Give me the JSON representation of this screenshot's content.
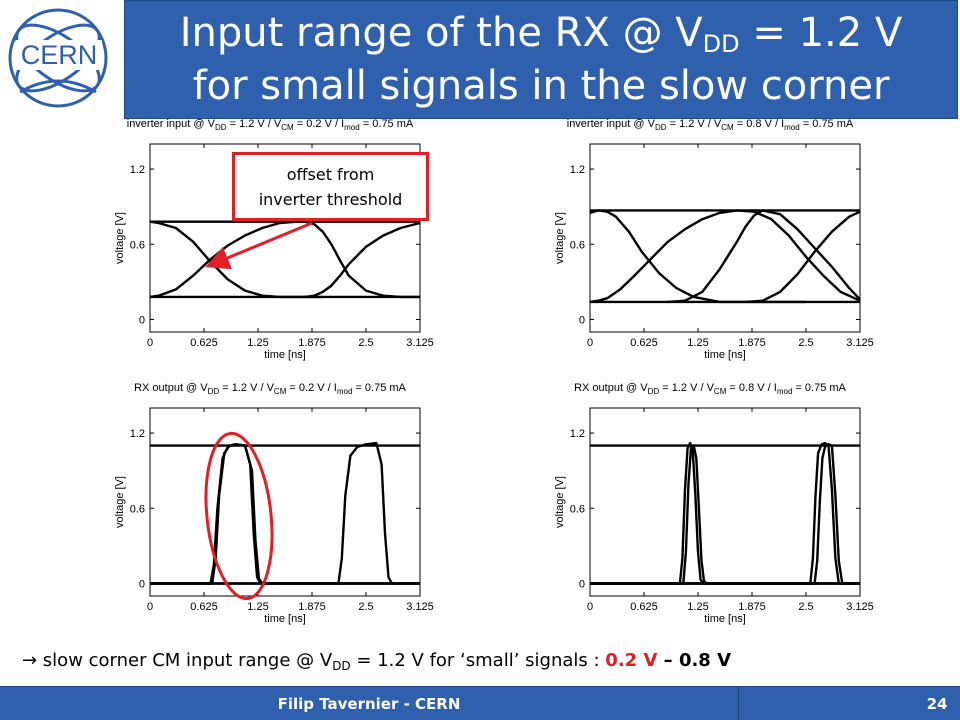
{
  "logo": {
    "text": "CERN"
  },
  "title": {
    "line1_prefix": "Input range of the RX @ V",
    "line1_sub": "DD",
    "line1_suffix": " = 1.2 V",
    "line2": "for small signals in the slow corner"
  },
  "callout": {
    "line1": "offset from",
    "line2": "inverter threshold"
  },
  "summary": {
    "prefix": "→ slow corner CM input range @ V",
    "sub": "DD",
    "middle": " = 1.2 V for ‘small’ signals : ",
    "low_value": "0.2 V",
    "dash": " – ",
    "high_value": "0.8 V"
  },
  "footer": {
    "author": "Filip Tavernier - CERN",
    "page": "24"
  },
  "chart_data": [
    {
      "type": "line",
      "title": "inverter input @ V_DD = 1.2 V / V_CM = 0.2 V / I_mod = 0.75 mA",
      "title_parts": {
        "a": "inverter input @ V",
        "b": "DD",
        "c": " = 1.2 V / V",
        "d": "CM",
        "e": " = 0.2 V / I",
        "f": "mod",
        "g": " = 0.75 mA"
      },
      "xlabel": "time [ns]",
      "ylabel": "voltage [V]",
      "xlim": [
        0,
        3.125
      ],
      "ylim": [
        -0.1,
        1.4
      ],
      "xticks": [
        "0",
        "0.625",
        "1.25",
        "1.875",
        "2.5",
        "3.125"
      ],
      "yticks": [
        "0",
        "0.6",
        "1.2"
      ],
      "series": [
        {
          "x": [
            0,
            3.125
          ],
          "y": [
            0.78,
            0.78
          ]
        },
        {
          "x": [
            0,
            3.125
          ],
          "y": [
            0.18,
            0.18
          ]
        },
        {
          "x": [
            0,
            0.1,
            0.3,
            0.5,
            0.7,
            0.9,
            1.1,
            1.3,
            1.5,
            1.7,
            1.8,
            2.0
          ],
          "y": [
            0.78,
            0.77,
            0.73,
            0.62,
            0.46,
            0.32,
            0.23,
            0.19,
            0.18,
            0.18,
            0.18,
            0.18
          ]
        },
        {
          "x": [
            0,
            0.1,
            0.3,
            0.5,
            0.7,
            0.9,
            1.1,
            1.3,
            1.5,
            1.7,
            1.8,
            2.0
          ],
          "y": [
            0.18,
            0.19,
            0.24,
            0.35,
            0.48,
            0.59,
            0.67,
            0.73,
            0.77,
            0.78,
            0.78,
            0.78
          ]
        },
        {
          "x": [
            1.8,
            1.9,
            2.0,
            2.1,
            2.2,
            2.3,
            2.5,
            2.7,
            2.9,
            3.125
          ],
          "y": [
            0.78,
            0.76,
            0.7,
            0.6,
            0.47,
            0.35,
            0.23,
            0.19,
            0.18,
            0.18
          ]
        },
        {
          "x": [
            1.8,
            1.9,
            2.0,
            2.1,
            2.2,
            2.3,
            2.5,
            2.7,
            2.9,
            3.125
          ],
          "y": [
            0.18,
            0.19,
            0.22,
            0.27,
            0.35,
            0.44,
            0.58,
            0.67,
            0.73,
            0.77
          ]
        }
      ]
    },
    {
      "type": "line",
      "title": "inverter input @ V_DD = 1.2 V / V_CM = 0.8 V / I_mod = 0.75 mA",
      "title_parts": {
        "a": "inverter input @ V",
        "b": "DD",
        "c": " = 1.2 V / V",
        "d": "CM",
        "e": " = 0.8 V / I",
        "f": "mod",
        "g": " = 0.75 mA"
      },
      "xlabel": "time [ns]",
      "ylabel": "voltage [V]",
      "xlim": [
        0,
        3.125
      ],
      "ylim": [
        -0.1,
        1.4
      ],
      "xticks": [
        "0",
        "0.625",
        "1.25",
        "1.875",
        "2.5",
        "3.125"
      ],
      "yticks": [
        "0",
        "0.6",
        "1.2"
      ],
      "series": [
        {
          "x": [
            0,
            3.125
          ],
          "y": [
            0.87,
            0.87
          ]
        },
        {
          "x": [
            0,
            3.125
          ],
          "y": [
            0.14,
            0.14
          ]
        },
        {
          "x": [
            0,
            0.1,
            0.2,
            0.3,
            0.45,
            0.6,
            0.8,
            1.0,
            1.2,
            1.5,
            1.8,
            2.0,
            2.5
          ],
          "y": [
            0.85,
            0.87,
            0.86,
            0.82,
            0.7,
            0.54,
            0.37,
            0.25,
            0.18,
            0.14,
            0.14,
            0.14,
            0.14
          ]
        },
        {
          "x": [
            0,
            0.1,
            0.2,
            0.35,
            0.5,
            0.7,
            0.9,
            1.1,
            1.3,
            1.5,
            1.7,
            1.9,
            2.1,
            2.3,
            2.5,
            2.7,
            2.9,
            3.125
          ],
          "y": [
            0.14,
            0.15,
            0.17,
            0.24,
            0.34,
            0.48,
            0.62,
            0.72,
            0.8,
            0.85,
            0.87,
            0.86,
            0.8,
            0.67,
            0.5,
            0.35,
            0.22,
            0.15
          ]
        },
        {
          "x": [
            0.9,
            1.1,
            1.3,
            1.5,
            1.7,
            1.8,
            1.9,
            2.0,
            2.2,
            2.4,
            2.6,
            2.8,
            3.0,
            3.125
          ],
          "y": [
            0.14,
            0.15,
            0.22,
            0.4,
            0.62,
            0.74,
            0.83,
            0.87,
            0.84,
            0.72,
            0.57,
            0.42,
            0.25,
            0.16
          ]
        },
        {
          "x": [
            1.8,
            2.0,
            2.2,
            2.4,
            2.6,
            2.8,
            3.0,
            3.125
          ],
          "y": [
            0.14,
            0.15,
            0.22,
            0.36,
            0.54,
            0.7,
            0.82,
            0.86
          ]
        }
      ]
    },
    {
      "type": "line",
      "title": "RX output @ V_DD = 1.2 V / V_CM = 0.2 V / I_mod = 0.75 mA",
      "title_parts": {
        "a": "RX output @ V",
        "b": "DD",
        "c": " = 1.2 V / V",
        "d": "CM",
        "e": " = 0.2 V / I",
        "f": "mod",
        "g": " = 0.75 mA"
      },
      "xlabel": "time [ns]",
      "ylabel": "voltage [V]",
      "xlim": [
        0,
        3.125
      ],
      "ylim": [
        -0.1,
        1.4
      ],
      "xticks": [
        "0",
        "0.625",
        "1.25",
        "1.875",
        "2.5",
        "3.125"
      ],
      "yticks": [
        "0",
        "0.6",
        "1.2"
      ],
      "series": [
        {
          "x": [
            0,
            3.125
          ],
          "y": [
            1.1,
            1.1
          ]
        },
        {
          "x": [
            0,
            3.125
          ],
          "y": [
            0,
            0
          ]
        },
        {
          "x": [
            0,
            0.72,
            0.76,
            0.8,
            0.86,
            0.92,
            1.0,
            1.1,
            1.16,
            1.2,
            1.24,
            1.28,
            3.125
          ],
          "y": [
            0,
            0,
            0.2,
            0.7,
            1.04,
            1.1,
            1.11,
            1.1,
            0.95,
            0.4,
            0.05,
            0,
            0
          ]
        },
        {
          "x": [
            0,
            0.7,
            0.74,
            0.78,
            0.84,
            0.9,
            0.98,
            1.1,
            1.18,
            1.22,
            1.26,
            1.3,
            3.125
          ],
          "y": [
            0,
            0,
            0.15,
            0.6,
            1.0,
            1.09,
            1.11,
            1.1,
            0.9,
            0.35,
            0.04,
            0,
            0
          ]
        },
        {
          "x": [
            0,
            2.18,
            2.22,
            2.26,
            2.32,
            2.4,
            2.5,
            2.62,
            2.68,
            2.72,
            2.76,
            2.8,
            3.125
          ],
          "y": [
            0,
            0,
            0.2,
            0.7,
            1.02,
            1.09,
            1.11,
            1.12,
            0.95,
            0.4,
            0.05,
            0,
            0
          ]
        }
      ]
    },
    {
      "type": "line",
      "title": "RX output @ V_DD = 1.2 V / V_CM = 0.8 V / I_mod = 0.75 mA",
      "title_parts": {
        "a": "RX output @ V",
        "b": "DD",
        "c": " = 1.2 V / V",
        "d": "CM",
        "e": " = 0.8 V / I",
        "f": "mod",
        "g": " = 0.75 mA"
      },
      "xlabel": "time [ns]",
      "ylabel": "voltage [V]",
      "xlim": [
        0,
        3.125
      ],
      "ylim": [
        -0.1,
        1.4
      ],
      "xticks": [
        "0",
        "0.625",
        "1.25",
        "1.875",
        "2.5",
        "3.125"
      ],
      "yticks": [
        "0",
        "0.6",
        "1.2"
      ],
      "series": [
        {
          "x": [
            0,
            3.125
          ],
          "y": [
            1.1,
            1.1
          ]
        },
        {
          "x": [
            0,
            3.125
          ],
          "y": [
            0,
            0
          ]
        },
        {
          "x": [
            0,
            1.04,
            1.07,
            1.1,
            1.13,
            1.16,
            1.19,
            1.22,
            1.25,
            1.28,
            1.31,
            3.125
          ],
          "y": [
            0,
            0,
            0.2,
            0.75,
            1.08,
            1.12,
            1.05,
            0.7,
            0.25,
            0.03,
            0,
            0
          ]
        },
        {
          "x": [
            0,
            1.08,
            1.11,
            1.14,
            1.17,
            1.2,
            1.23,
            1.26,
            1.29,
            1.32,
            1.35,
            3.125
          ],
          "y": [
            0,
            0,
            0.25,
            0.8,
            1.09,
            1.1,
            1.0,
            0.6,
            0.18,
            0.02,
            0,
            0
          ]
        },
        {
          "x": [
            0,
            2.55,
            2.58,
            2.61,
            2.64,
            2.68,
            2.72,
            2.76,
            2.8,
            2.84,
            2.88,
            3.125
          ],
          "y": [
            0,
            0,
            0.2,
            0.7,
            1.04,
            1.11,
            1.12,
            1.1,
            0.75,
            0.2,
            0,
            0
          ]
        },
        {
          "x": [
            0,
            2.6,
            2.63,
            2.66,
            2.69,
            2.72,
            2.76,
            2.8,
            2.84,
            2.88,
            2.92,
            3.125
          ],
          "y": [
            0,
            0,
            0.18,
            0.65,
            1.0,
            1.09,
            1.11,
            1.1,
            0.7,
            0.18,
            0,
            0
          ]
        }
      ]
    }
  ]
}
